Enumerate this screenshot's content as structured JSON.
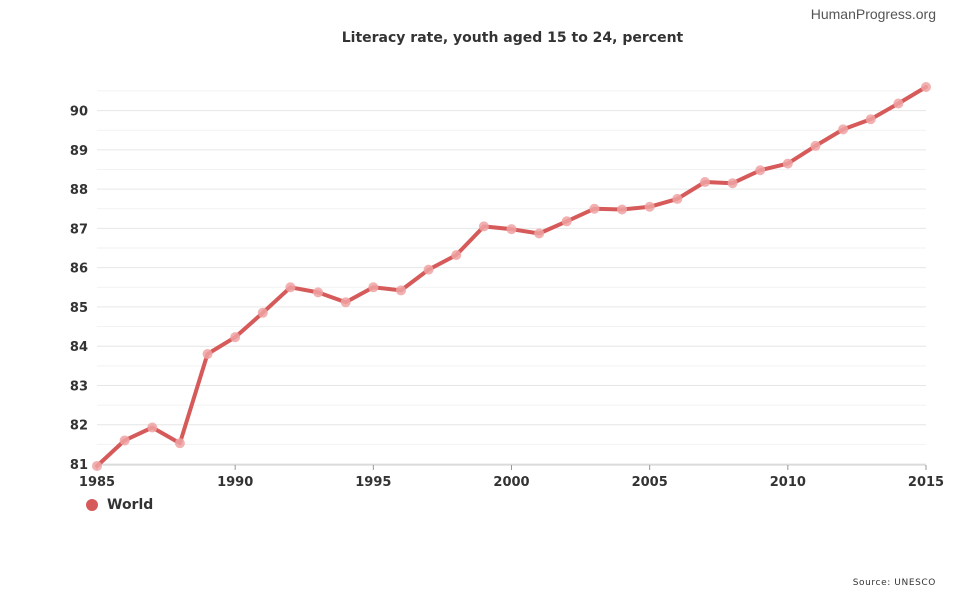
{
  "watermark": "HumanProgress.org",
  "source": "Source: UNESCO",
  "colors": {
    "line": "#d65a5a",
    "marker": "#f0a3a3",
    "grid": "#e6e6e6"
  },
  "chart_data": {
    "type": "line",
    "title": "Literacy rate, youth aged 15 to 24, percent",
    "xlabel": "",
    "ylabel": "",
    "xlim": [
      1985,
      2015
    ],
    "ylim": [
      81,
      90.6
    ],
    "x_ticks": [
      1985,
      1990,
      1995,
      2000,
      2005,
      2010,
      2015
    ],
    "y_ticks": [
      81,
      82,
      83,
      84,
      85,
      86,
      87,
      88,
      89,
      90
    ],
    "grid": true,
    "legend_position": "bottom-left",
    "x": [
      1985,
      1986,
      1987,
      1988,
      1989,
      1990,
      1991,
      1992,
      1993,
      1994,
      1995,
      1996,
      1997,
      1998,
      1999,
      2000,
      2001,
      2002,
      2003,
      2004,
      2005,
      2006,
      2007,
      2008,
      2009,
      2010,
      2011,
      2012,
      2013,
      2014,
      2015
    ],
    "series": [
      {
        "name": "World",
        "values": [
          80.95,
          81.6,
          81.93,
          81.53,
          83.8,
          84.23,
          84.85,
          85.5,
          85.37,
          85.12,
          85.5,
          85.42,
          85.95,
          86.32,
          87.05,
          86.98,
          86.87,
          87.18,
          87.5,
          87.48,
          87.55,
          87.75,
          88.18,
          88.15,
          88.48,
          88.65,
          89.1,
          89.52,
          89.78,
          90.18,
          90.6
        ]
      }
    ]
  }
}
